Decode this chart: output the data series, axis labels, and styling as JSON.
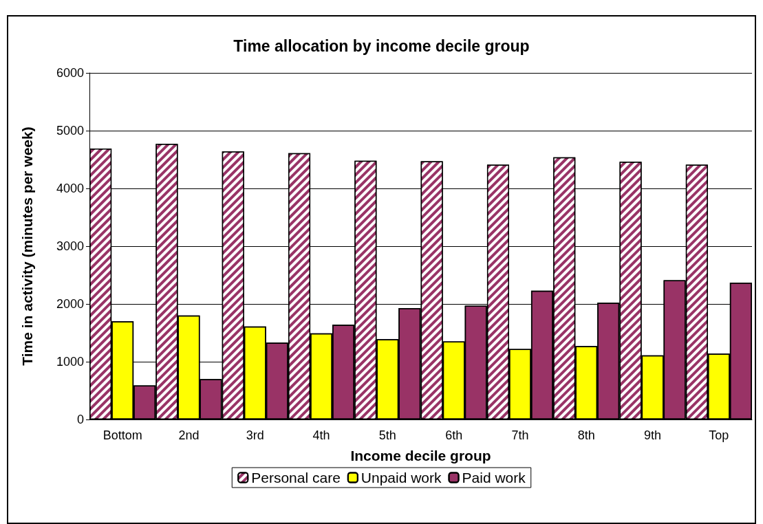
{
  "chart_data": {
    "type": "bar",
    "title": "Time allocation by income decile group",
    "xlabel": "Income decile group",
    "ylabel": "Time in activity (minutes per week)",
    "categories": [
      "Bottom",
      "2nd",
      "3rd",
      "4th",
      "5th",
      "6th",
      "7th",
      "8th",
      "9th",
      "Top"
    ],
    "series": [
      {
        "name": "Personal care",
        "color": "#993366",
        "values": [
          4690,
          4770,
          4640,
          4610,
          4480,
          4470,
          4410,
          4540,
          4460,
          4410
        ]
      },
      {
        "name": "Unpaid work",
        "color": "#ffff00",
        "values": [
          1700,
          1800,
          1610,
          1490,
          1390,
          1350,
          1220,
          1270,
          1110,
          1140
        ]
      },
      {
        "name": "Paid work",
        "color": "#993366",
        "values": [
          590,
          700,
          1330,
          1640,
          1930,
          1970,
          2230,
          2020,
          2410,
          2370
        ]
      }
    ],
    "ylim": [
      0,
      6000
    ],
    "yticks": [
      0,
      1000,
      2000,
      3000,
      4000,
      5000,
      6000
    ],
    "grid": "y",
    "legend": "bottom"
  }
}
